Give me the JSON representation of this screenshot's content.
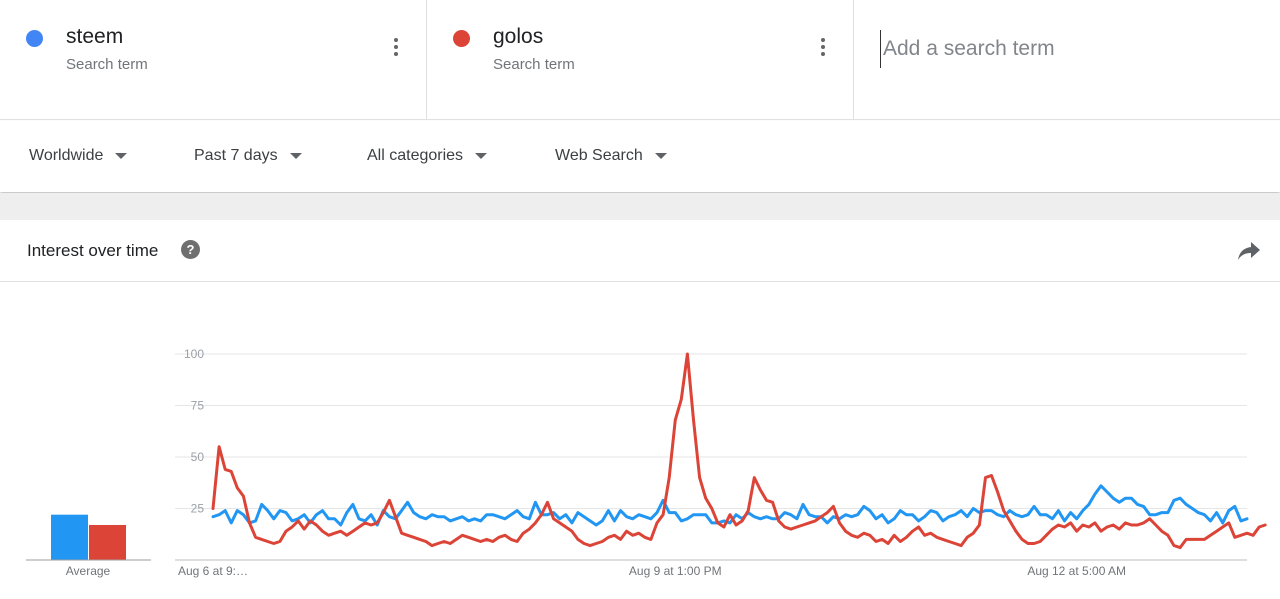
{
  "terms": [
    {
      "name": "steem",
      "subtitle": "Search term",
      "color": "#4285f4"
    },
    {
      "name": "golos",
      "subtitle": "Search term",
      "color": "#db4437"
    }
  ],
  "add_term": {
    "placeholder": "Add a search term"
  },
  "filters": {
    "region": "Worldwide",
    "time": "Past 7 days",
    "category": "All categories",
    "search_type": "Web Search"
  },
  "panel": {
    "title": "Interest over time",
    "help_glyph": "?"
  },
  "icons": {
    "term_menu": "more-vert-icon",
    "help": "help-icon",
    "share": "share-icon"
  },
  "chart_data": {
    "type": "line",
    "y_ticks": [
      25,
      50,
      75,
      100
    ],
    "ylim": [
      0,
      100
    ],
    "grid": true,
    "x_labels": [
      {
        "label": "Aug 6 at 9:…",
        "index": 0
      },
      {
        "label": "Aug 9 at 1:00 PM",
        "index": 76
      },
      {
        "label": "Aug 12 at 5:00 AM",
        "index": 142
      }
    ],
    "series": [
      {
        "name": "steem",
        "color": "#2196f3",
        "values": [
          21,
          22,
          24,
          18,
          24,
          22,
          18,
          19,
          27,
          24,
          20,
          24,
          23,
          19,
          20,
          22,
          18,
          22,
          24,
          20,
          20,
          17,
          23,
          27,
          20,
          19,
          22,
          17,
          24,
          21,
          20,
          24,
          28,
          23,
          21,
          20,
          22,
          21,
          21,
          19,
          20,
          21,
          19,
          20,
          19,
          22,
          22,
          21,
          20,
          22,
          24,
          21,
          20,
          28,
          22,
          22,
          23,
          20,
          22,
          18,
          23,
          21,
          19,
          17,
          19,
          24,
          19,
          24,
          21,
          20,
          22,
          21,
          20,
          23,
          29,
          23,
          23,
          19,
          20,
          22,
          22,
          22,
          18,
          18,
          19,
          18,
          22,
          20,
          23,
          21,
          20,
          21,
          20,
          20,
          23,
          22,
          20,
          27,
          22,
          21,
          21,
          18,
          21,
          20,
          22,
          21,
          22,
          26,
          24,
          20,
          22,
          18,
          20,
          24,
          22,
          22,
          19,
          21,
          24,
          23,
          19,
          21,
          22,
          24,
          21,
          25,
          23,
          24,
          24,
          22,
          21,
          24,
          22,
          21,
          22,
          26,
          22,
          22,
          20,
          24,
          19,
          23,
          20,
          24,
          27,
          32,
          36,
          33,
          30,
          28,
          30,
          30,
          27,
          26,
          22,
          22,
          23,
          23,
          29,
          30,
          27,
          25,
          23,
          22,
          19,
          23,
          18,
          24,
          26,
          19,
          20
        ],
        "average": 22
      },
      {
        "name": "golos",
        "color": "#db4437",
        "values": [
          25,
          55,
          44,
          43,
          35,
          31,
          18,
          11,
          10,
          9,
          8,
          9,
          14,
          16,
          19,
          15,
          19,
          17,
          14,
          12,
          13,
          14,
          12,
          14,
          16,
          18,
          17,
          18,
          23,
          29,
          21,
          13,
          12,
          11,
          10,
          9,
          7,
          8,
          9,
          8,
          10,
          12,
          11,
          10,
          9,
          10,
          9,
          11,
          12,
          10,
          9,
          13,
          15,
          18,
          22,
          28,
          20,
          18,
          16,
          14,
          10,
          8,
          7,
          8,
          9,
          11,
          12,
          10,
          14,
          12,
          13,
          11,
          10,
          18,
          22,
          40,
          68,
          78,
          100,
          68,
          40,
          30,
          25,
          18,
          16,
          22,
          17,
          19,
          24,
          40,
          34,
          29,
          28,
          19,
          16,
          15,
          16,
          17,
          18,
          19,
          21,
          23,
          26,
          18,
          14,
          12,
          11,
          13,
          12,
          9,
          10,
          8,
          12,
          9,
          11,
          14,
          16,
          12,
          13,
          11,
          10,
          9,
          8,
          7,
          11,
          13,
          17,
          40,
          41,
          33,
          24,
          19,
          14,
          10,
          8,
          8,
          9,
          12,
          15,
          17,
          16,
          18,
          14,
          17,
          16,
          18,
          14,
          16,
          17,
          15,
          18,
          17,
          17,
          18,
          20,
          17,
          14,
          12,
          7,
          6,
          10,
          10,
          10,
          10,
          12,
          14,
          16,
          18,
          11,
          12,
          13,
          12,
          16,
          17
        ],
        "average": 17
      }
    ],
    "average_label": "Average",
    "legend": "top"
  }
}
